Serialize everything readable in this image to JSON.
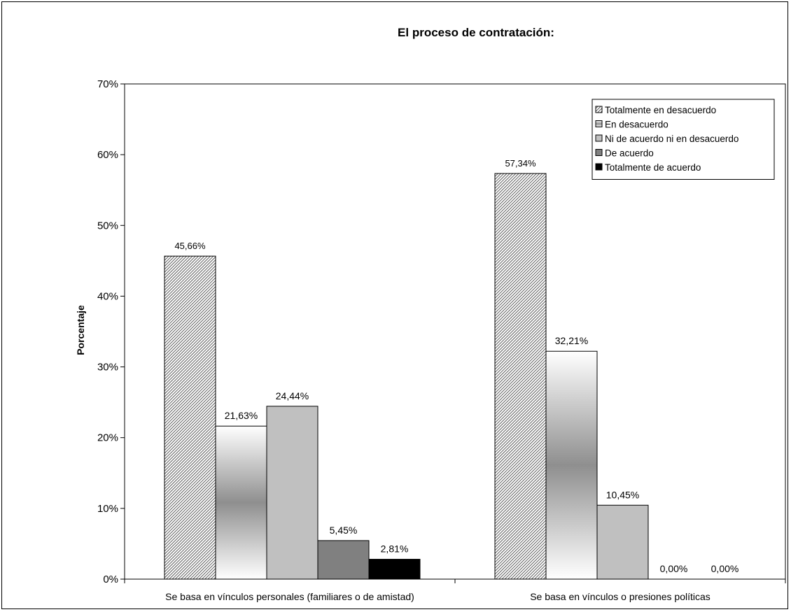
{
  "chart_data": {
    "type": "bar",
    "title": "El proceso de contratación:",
    "ylabel": "Porcentaje",
    "xlabel": "",
    "ylim": [
      0,
      70
    ],
    "yticks": [
      0,
      10,
      20,
      30,
      40,
      50,
      60,
      70
    ],
    "ytick_labels": [
      "0%",
      "10%",
      "20%",
      "30%",
      "40%",
      "50%",
      "60%",
      "70%"
    ],
    "grid": false,
    "legend_position": "top-right",
    "categories": [
      "Se basa en vínculos personales (familiares o de amistad)",
      "Se basa en vínculos o presiones políticas"
    ],
    "series": [
      {
        "name": "Totalmente en desacuerdo",
        "values": [
          45.66,
          57.34
        ],
        "labels": [
          "45,66%",
          "57,34%"
        ],
        "fill": "hatch"
      },
      {
        "name": "En desacuerdo",
        "values": [
          21.63,
          32.21
        ],
        "labels": [
          "21,63%",
          "32,21%"
        ],
        "fill": "gradient"
      },
      {
        "name": "Ni de acuerdo ni en desacuerdo",
        "values": [
          24.44,
          10.45
        ],
        "labels": [
          "24,44%",
          "10,45%"
        ],
        "fill": "#c0c0c0"
      },
      {
        "name": "De acuerdo",
        "values": [
          5.45,
          0.0
        ],
        "labels": [
          "5,45%",
          "0,00%"
        ],
        "fill": "#808080"
      },
      {
        "name": "Totalmente de acuerdo",
        "values": [
          2.81,
          0.0
        ],
        "labels": [
          "2,81%",
          "0,00%"
        ],
        "fill": "#000000"
      }
    ]
  }
}
